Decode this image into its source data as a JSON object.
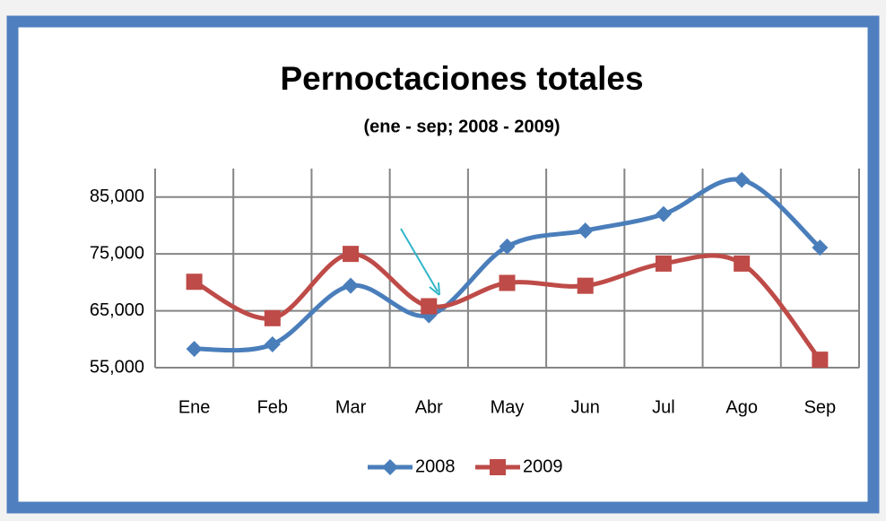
{
  "chart_data": {
    "type": "line",
    "title": "Pernoctaciones totales",
    "subtitle": "(ene - sep; 2008 - 2009)",
    "categories": [
      "Ene",
      "Feb",
      "Mar",
      "Abr",
      "May",
      "Jun",
      "Jul",
      "Ago",
      "Sep"
    ],
    "series": [
      {
        "name": "2008",
        "color": "#4a7ebb",
        "marker": "diamond",
        "values": [
          58300,
          59100,
          69400,
          64200,
          76300,
          79100,
          82000,
          88000,
          76100
        ]
      },
      {
        "name": "2009",
        "color": "#be4b48",
        "marker": "square",
        "values": [
          70100,
          63700,
          75000,
          65800,
          69900,
          69400,
          73300,
          73300,
          56400
        ]
      }
    ],
    "ylim": [
      55000,
      90000
    ],
    "yticks": [
      {
        "value": 55000,
        "label": "55,000"
      },
      {
        "value": 65000,
        "label": "65,000"
      },
      {
        "value": 75000,
        "label": "75,000"
      },
      {
        "value": 85000,
        "label": "85,000"
      }
    ],
    "grid": true,
    "legend": "bottom"
  }
}
